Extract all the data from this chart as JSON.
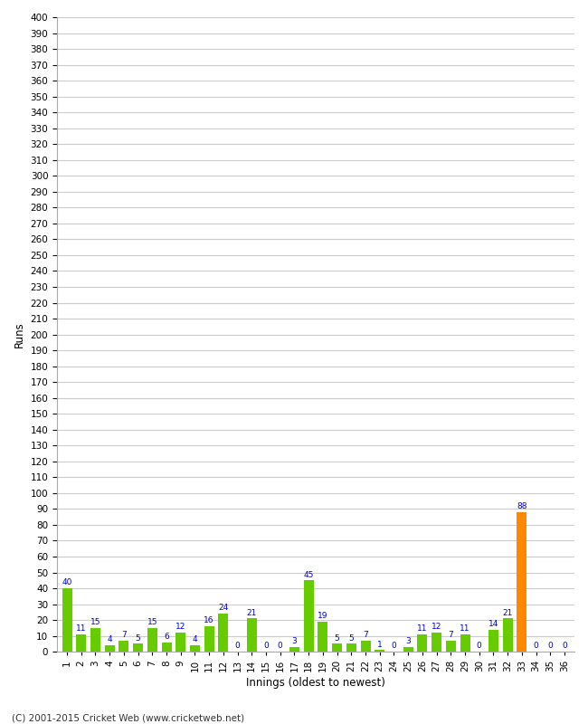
{
  "innings": [
    1,
    2,
    3,
    4,
    5,
    6,
    7,
    8,
    9,
    10,
    11,
    12,
    13,
    14,
    15,
    16,
    17,
    18,
    19,
    20,
    21,
    22,
    23,
    24,
    25,
    26,
    27,
    28,
    29,
    30,
    31,
    32,
    33,
    34,
    35,
    36
  ],
  "values": [
    40,
    11,
    15,
    4,
    7,
    5,
    15,
    6,
    12,
    4,
    16,
    24,
    0,
    21,
    0,
    0,
    3,
    45,
    19,
    5,
    5,
    7,
    1,
    0,
    3,
    11,
    12,
    7,
    11,
    0,
    14,
    21,
    88,
    0,
    0,
    0
  ],
  "highlight_index": 32,
  "bar_color_normal": "#66cc00",
  "bar_color_highlight": "#ff8800",
  "value_label_color": "#0000cc",
  "xlabel": "Innings (oldest to newest)",
  "ylabel": "Runs",
  "ylim": [
    0,
    400
  ],
  "background_color": "#ffffff",
  "grid_color": "#cccccc",
  "footer": "(C) 2001-2015 Cricket Web (www.cricketweb.net)"
}
